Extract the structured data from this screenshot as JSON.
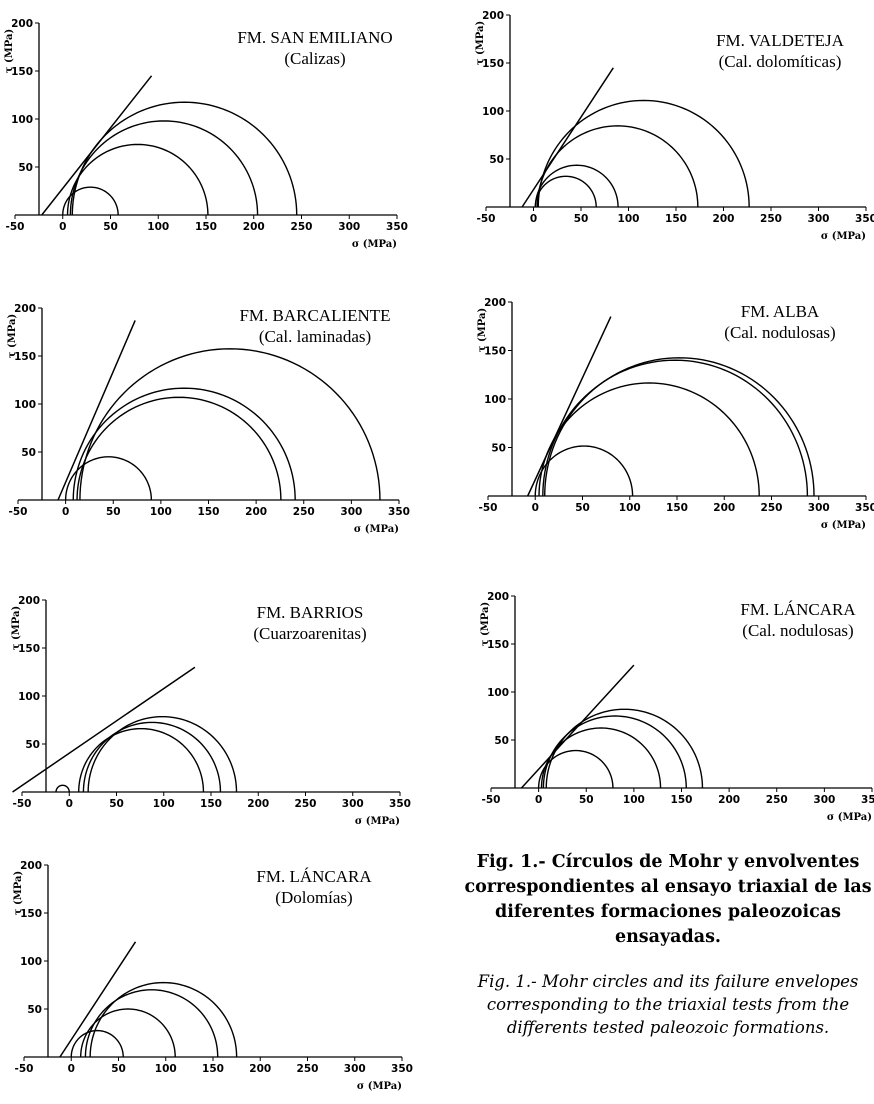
{
  "chart_data": [
    {
      "type": "mohr-circles",
      "title": "FM. SAN EMILIANO",
      "subtitle": "(Calizas)",
      "xlabel": "σ (MPa)",
      "ylabel": "τ (MPa)",
      "xlim": [
        -50,
        350
      ],
      "ylim": [
        0,
        200
      ],
      "xticks": [
        "-50",
        "0",
        "50",
        "100",
        "150",
        "200",
        "250",
        "300",
        "350"
      ],
      "yticks": [
        "50",
        "100",
        "150",
        "200"
      ],
      "circles": [
        {
          "sigma3": 0,
          "sigma1": 58
        },
        {
          "sigma3": 5,
          "sigma1": 152
        },
        {
          "sigma3": 8,
          "sigma1": 204
        },
        {
          "sigma3": 10,
          "sigma1": 245
        }
      ],
      "envelope": [
        [
          -22,
          0
        ],
        [
          93,
          145
        ]
      ]
    },
    {
      "type": "mohr-circles",
      "title": "FM. VALDETEJA",
      "subtitle": "(Cal. dolomíticas)",
      "xlabel": "σ (MPa)",
      "ylabel": "τ (MPa)",
      "xlim": [
        -50,
        350
      ],
      "ylim": [
        0,
        200
      ],
      "xticks": [
        "-50",
        "0",
        "50",
        "100",
        "150",
        "200",
        "250",
        "300",
        "350"
      ],
      "yticks": [
        "50",
        "100",
        "150",
        "200"
      ],
      "circles": [
        {
          "sigma3": 2,
          "sigma1": 66
        },
        {
          "sigma3": 2,
          "sigma1": 89
        },
        {
          "sigma3": 4,
          "sigma1": 173
        },
        {
          "sigma3": 5,
          "sigma1": 227
        }
      ],
      "envelope": [
        [
          -12,
          0
        ],
        [
          84,
          145
        ]
      ]
    },
    {
      "type": "mohr-circles",
      "title": "FM. BARCALIENTE",
      "subtitle": "(Cal. laminadas)",
      "xlabel": "σ (MPa)",
      "ylabel": "τ (MPa)",
      "xlim": [
        -50,
        350
      ],
      "ylim": [
        0,
        200
      ],
      "xticks": [
        "-50",
        "0",
        "50",
        "100",
        "150",
        "200",
        "250",
        "300",
        "350"
      ],
      "yticks": [
        "50",
        "100",
        "150",
        "200"
      ],
      "circles": [
        {
          "sigma3": 0,
          "sigma1": 90
        },
        {
          "sigma3": 12,
          "sigma1": 226
        },
        {
          "sigma3": 8,
          "sigma1": 241
        },
        {
          "sigma3": 15,
          "sigma1": 330
        }
      ],
      "envelope": [
        [
          -8,
          0
        ],
        [
          73,
          187
        ]
      ]
    },
    {
      "type": "mohr-circles",
      "title": "FM. ALBA",
      "subtitle": "(Cal. nodulosas)",
      "xlabel": "σ (MPa)",
      "ylabel": "τ (MPa)",
      "xlim": [
        -50,
        350
      ],
      "ylim": [
        0,
        200
      ],
      "xticks": [
        "-50",
        "0",
        "50",
        "100",
        "150",
        "200",
        "250",
        "300",
        "350"
      ],
      "yticks": [
        "50",
        "100",
        "150",
        "200"
      ],
      "circles": [
        {
          "sigma3": 0,
          "sigma1": 103
        },
        {
          "sigma3": 4,
          "sigma1": 237
        },
        {
          "sigma3": 8,
          "sigma1": 288
        },
        {
          "sigma3": 10,
          "sigma1": 295
        }
      ],
      "envelope": [
        [
          -8,
          0
        ],
        [
          80,
          185
        ]
      ]
    },
    {
      "type": "mohr-circles",
      "title": "FM. BARRIOS",
      "subtitle": "(Cuarzoarenitas)",
      "xlabel": "σ (MPa)",
      "ylabel": "τ (MPa)",
      "xlim": [
        -50,
        350
      ],
      "ylim": [
        0,
        200
      ],
      "xticks": [
        "-50",
        "0",
        "50",
        "100",
        "150",
        "200",
        "250",
        "300",
        "350"
      ],
      "yticks": [
        "50",
        "100",
        "150",
        "200"
      ],
      "circles": [
        {
          "sigma3": -14,
          "sigma1": 0
        },
        {
          "sigma3": 10,
          "sigma1": 142
        },
        {
          "sigma3": 15,
          "sigma1": 160
        },
        {
          "sigma3": 20,
          "sigma1": 177
        }
      ],
      "envelope": [
        [
          -60,
          0
        ],
        [
          133,
          130
        ]
      ]
    },
    {
      "type": "mohr-circles",
      "title": "FM. LÁNCARA",
      "subtitle": "(Cal. nodulosas)",
      "xlabel": "σ (MPa)",
      "ylabel": "τ (MPa)",
      "xlim": [
        -50,
        350
      ],
      "ylim": [
        0,
        200
      ],
      "xticks": [
        "-50",
        "0",
        "50",
        "100",
        "150",
        "200",
        "250",
        "300",
        "350"
      ],
      "yticks": [
        "50",
        "100",
        "150",
        "200"
      ],
      "circles": [
        {
          "sigma3": 0,
          "sigma1": 78
        },
        {
          "sigma3": 3,
          "sigma1": 128
        },
        {
          "sigma3": 5,
          "sigma1": 155
        },
        {
          "sigma3": 8,
          "sigma1": 172
        }
      ],
      "envelope": [
        [
          -18,
          0
        ],
        [
          100,
          128
        ]
      ]
    },
    {
      "type": "mohr-circles",
      "title": "FM. LÁNCARA",
      "subtitle": "(Dolomías)",
      "xlabel": "σ (MPa)",
      "ylabel": "τ (MPa)",
      "xlim": [
        -50,
        350
      ],
      "ylim": [
        0,
        200
      ],
      "xticks": [
        "-50",
        "0",
        "50",
        "100",
        "150",
        "200",
        "250",
        "300",
        "350"
      ],
      "yticks": [
        "50",
        "100",
        "150",
        "200"
      ],
      "circles": [
        {
          "sigma3": 0,
          "sigma1": 55
        },
        {
          "sigma3": 10,
          "sigma1": 110
        },
        {
          "sigma3": 15,
          "sigma1": 155
        },
        {
          "sigma3": 20,
          "sigma1": 175
        }
      ],
      "envelope": [
        [
          -12,
          0
        ],
        [
          68,
          120
        ]
      ]
    }
  ],
  "caption": {
    "spanish": "Fig. 1.- Círculos de Mohr y envolventes correspondientes al ensayo triaxial de las diferentes formaciones paleozoicas ensayadas.",
    "english": "Fig. 1.- Mohr circles and its failure envelopes corresponding to the triaxial tests from the differents tested paleozoic formations."
  }
}
